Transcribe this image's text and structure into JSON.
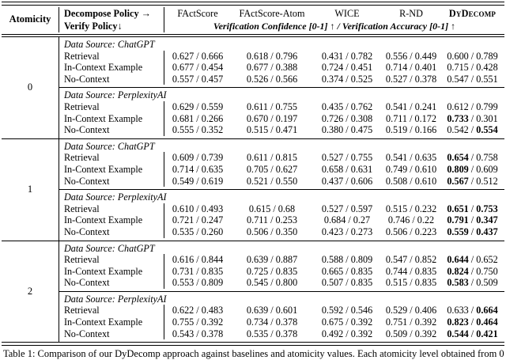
{
  "table": {
    "header": {
      "col1": "Atomicity",
      "decompose_label": "Decompose Policy →",
      "verify_label": "Verify Policy↓",
      "methods": [
        "FActScore",
        "FActScore-Atom",
        "WICE",
        "R-ND",
        "DyDecomp"
      ],
      "subheader": "Verification Confidence [0-1] ↑ / Verification Accuracy [0-1] ↑"
    },
    "groups": [
      {
        "atomicity": "0",
        "sections": [
          {
            "source": "Data Source: ChatGPT",
            "rows": [
              {
                "policy": "Retrieval",
                "cells": [
                  {
                    "c": "0.627",
                    "a": "0.666"
                  },
                  {
                    "c": "0.618",
                    "a": "0.796"
                  },
                  {
                    "c": "0.431",
                    "a": "0.782"
                  },
                  {
                    "c": "0.556",
                    "a": "0.449"
                  },
                  {
                    "c": "0.600",
                    "a": "0.789"
                  }
                ]
              },
              {
                "policy": "In-Context Example",
                "cells": [
                  {
                    "c": "0.677",
                    "a": "0.454"
                  },
                  {
                    "c": "0.677",
                    "a": "0.388"
                  },
                  {
                    "c": "0.724",
                    "a": "0.451"
                  },
                  {
                    "c": "0.714",
                    "a": "0.401"
                  },
                  {
                    "c": "0.715",
                    "a": "0.428"
                  }
                ]
              },
              {
                "policy": "No-Context",
                "cells": [
                  {
                    "c": "0.557",
                    "a": "0.457"
                  },
                  {
                    "c": "0.526",
                    "a": "0.566"
                  },
                  {
                    "c": "0.374",
                    "a": "0.525"
                  },
                  {
                    "c": "0.527",
                    "a": "0.378"
                  },
                  {
                    "c": "0.547",
                    "a": "0.551"
                  }
                ]
              }
            ]
          },
          {
            "source": "Data Source: PerplexityAI",
            "rows": [
              {
                "policy": "Retrieval",
                "cells": [
                  {
                    "c": "0.629",
                    "a": "0.559"
                  },
                  {
                    "c": "0.611",
                    "a": "0.755"
                  },
                  {
                    "c": "0.435",
                    "a": "0.762"
                  },
                  {
                    "c": "0.541",
                    "a": "0.241"
                  },
                  {
                    "c": "0.612",
                    "a": "0.799"
                  }
                ]
              },
              {
                "policy": "In-Context Example",
                "cells": [
                  {
                    "c": "0.681",
                    "a": "0.266"
                  },
                  {
                    "c": "0.670",
                    "a": "0.197"
                  },
                  {
                    "c": "0.726",
                    "a": "0.308"
                  },
                  {
                    "c": "0.711",
                    "a": "0.172"
                  },
                  {
                    "c": "0.733",
                    "a": "0.301",
                    "cb": true
                  }
                ]
              },
              {
                "policy": "No-Context",
                "cells": [
                  {
                    "c": "0.555",
                    "a": "0.352"
                  },
                  {
                    "c": "0.515",
                    "a": "0.471"
                  },
                  {
                    "c": "0.380",
                    "a": "0.475"
                  },
                  {
                    "c": "0.519",
                    "a": "0.166"
                  },
                  {
                    "c": "0.542",
                    "a": "0.554",
                    "ab": true
                  }
                ]
              }
            ]
          }
        ]
      },
      {
        "atomicity": "1",
        "sections": [
          {
            "source": "Data Source: ChatGPT",
            "rows": [
              {
                "policy": "Retrieval",
                "cells": [
                  {
                    "c": "0.609",
                    "a": "0.739"
                  },
                  {
                    "c": "0.611",
                    "a": "0.815"
                  },
                  {
                    "c": "0.527",
                    "a": "0.755"
                  },
                  {
                    "c": "0.541",
                    "a": "0.635"
                  },
                  {
                    "c": "0.654",
                    "a": "0.758",
                    "cb": true
                  }
                ]
              },
              {
                "policy": "In-Context Example",
                "cells": [
                  {
                    "c": "0.714",
                    "a": "0.635"
                  },
                  {
                    "c": "0.705",
                    "a": "0.627"
                  },
                  {
                    "c": "0.658",
                    "a": "0.631"
                  },
                  {
                    "c": "0.749",
                    "a": "0.610"
                  },
                  {
                    "c": "0.809",
                    "a": "0.609",
                    "cb": true
                  }
                ]
              },
              {
                "policy": "No-Context",
                "cells": [
                  {
                    "c": "0.549",
                    "a": "0.619"
                  },
                  {
                    "c": "0.521",
                    "a": "0.550"
                  },
                  {
                    "c": "0.437",
                    "a": "0.606"
                  },
                  {
                    "c": "0.508",
                    "a": "0.610"
                  },
                  {
                    "c": "0.567",
                    "a": "0.512",
                    "cb": true
                  }
                ]
              }
            ]
          },
          {
            "source": "Data Source: PerplexityAI",
            "rows": [
              {
                "policy": "Retrieval",
                "cells": [
                  {
                    "c": "0.610",
                    "a": "0.493"
                  },
                  {
                    "c": "0.615",
                    "a": "0.68"
                  },
                  {
                    "c": "0.527",
                    "a": "0.597"
                  },
                  {
                    "c": "0.515",
                    "a": "0.232"
                  },
                  {
                    "c": "0.651",
                    "a": "0.753",
                    "cb": true,
                    "ab": true
                  }
                ]
              },
              {
                "policy": "In-Context Example",
                "cells": [
                  {
                    "c": "0.721",
                    "a": "0.247"
                  },
                  {
                    "c": "0.711",
                    "a": "0.253"
                  },
                  {
                    "c": "0.684",
                    "a": "0.27"
                  },
                  {
                    "c": "0.746",
                    "a": "0.22"
                  },
                  {
                    "c": "0.791",
                    "a": "0.347",
                    "cb": true,
                    "ab": true
                  }
                ]
              },
              {
                "policy": "No-Context",
                "cells": [
                  {
                    "c": "0.535",
                    "a": "0.260"
                  },
                  {
                    "c": "0.506",
                    "a": "0.350"
                  },
                  {
                    "c": "0.423",
                    "a": "0.273"
                  },
                  {
                    "c": "0.506",
                    "a": "0.223"
                  },
                  {
                    "c": "0.559",
                    "a": "0.437",
                    "cb": true,
                    "ab": true
                  }
                ]
              }
            ]
          }
        ]
      },
      {
        "atomicity": "2",
        "sections": [
          {
            "source": "Data Source: ChatGPT",
            "rows": [
              {
                "policy": "Retrieval",
                "cells": [
                  {
                    "c": "0.616",
                    "a": "0.844"
                  },
                  {
                    "c": "0.639",
                    "a": "0.887"
                  },
                  {
                    "c": "0.588",
                    "a": "0.809"
                  },
                  {
                    "c": "0.547",
                    "a": "0.852"
                  },
                  {
                    "c": "0.644",
                    "a": "0.652",
                    "cb": true
                  }
                ]
              },
              {
                "policy": "In-Context Example",
                "cells": [
                  {
                    "c": "0.731",
                    "a": "0.835"
                  },
                  {
                    "c": "0.725",
                    "a": "0.835"
                  },
                  {
                    "c": "0.665",
                    "a": "0.835"
                  },
                  {
                    "c": "0.744",
                    "a": "0.835"
                  },
                  {
                    "c": "0.824",
                    "a": "0.750",
                    "cb": true
                  }
                ]
              },
              {
                "policy": "No-Context",
                "cells": [
                  {
                    "c": "0.553",
                    "a": "0.809"
                  },
                  {
                    "c": "0.545",
                    "a": "0.800"
                  },
                  {
                    "c": "0.507",
                    "a": "0.835"
                  },
                  {
                    "c": "0.515",
                    "a": "0.835"
                  },
                  {
                    "c": "0.583",
                    "a": "0.509",
                    "cb": true
                  }
                ]
              }
            ]
          },
          {
            "source": "Data Source: PerplexityAI",
            "rows": [
              {
                "policy": "Retrieval",
                "cells": [
                  {
                    "c": "0.622",
                    "a": "0.483"
                  },
                  {
                    "c": "0.639",
                    "a": "0.601"
                  },
                  {
                    "c": "0.592",
                    "a": "0.546"
                  },
                  {
                    "c": "0.529",
                    "a": "0.406"
                  },
                  {
                    "c": "0.633",
                    "a": "0.664",
                    "ab": true
                  }
                ]
              },
              {
                "policy": "In-Context Example",
                "cells": [
                  {
                    "c": "0.755",
                    "a": "0.392"
                  },
                  {
                    "c": "0.734",
                    "a": "0.378"
                  },
                  {
                    "c": "0.675",
                    "a": "0.392"
                  },
                  {
                    "c": "0.751",
                    "a": "0.392"
                  },
                  {
                    "c": "0.823",
                    "a": "0.464",
                    "cb": true,
                    "ab": true
                  }
                ]
              },
              {
                "policy": "No-Context",
                "cells": [
                  {
                    "c": "0.543",
                    "a": "0.378"
                  },
                  {
                    "c": "0.535",
                    "a": "0.378"
                  },
                  {
                    "c": "0.492",
                    "a": "0.392"
                  },
                  {
                    "c": "0.509",
                    "a": "0.392"
                  },
                  {
                    "c": "0.544",
                    "a": "0.421",
                    "cb": true,
                    "ab": true
                  }
                ]
              }
            ]
          }
        ]
      }
    ]
  },
  "caption": "Table 1: Comparison of our DyDecomp approach against baselines and atomicity values. Each atomicity level obtained from 0"
}
